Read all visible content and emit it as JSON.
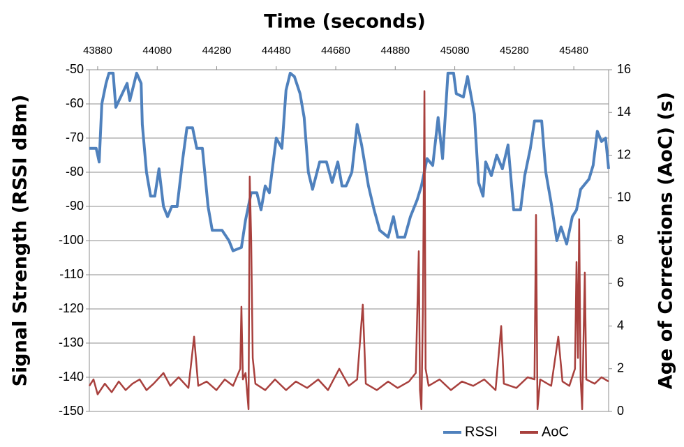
{
  "chart_data": {
    "type": "line",
    "x_label": "Time (seconds)",
    "y_label": "Signal Strength (RSSI dBm)",
    "y2_label": "Age of Corrections (AoC) (s)",
    "xlim": [
      43852,
      45597
    ],
    "xticks": [
      43880,
      44080,
      44280,
      44480,
      44680,
      44880,
      45080,
      45280,
      45480
    ],
    "ylim": [
      -150,
      -50
    ],
    "yticks": [
      -150,
      -140,
      -130,
      -120,
      -110,
      -100,
      -90,
      -80,
      -70,
      -60,
      -50
    ],
    "y2lim": [
      0,
      16
    ],
    "y2ticks": [
      0,
      2,
      4,
      6,
      8,
      10,
      12,
      14,
      16
    ],
    "grid": true,
    "legend": "bottom",
    "series": [
      {
        "name": "RSSI",
        "color": "#4f81bd",
        "x": [
          43852,
          43875,
          43885,
          43894,
          43908,
          43918,
          43932,
          43941,
          43979,
          43988,
          44011,
          44026,
          44030,
          44044,
          44058,
          44072,
          44086,
          44101,
          44115,
          44129,
          44147,
          44166,
          44180,
          44199,
          44213,
          44232,
          44251,
          44265,
          44298,
          44321,
          44335,
          44363,
          44377,
          44396,
          44415,
          44429,
          44443,
          44457,
          44480,
          44499,
          44513,
          44527,
          44541,
          44560,
          44574,
          44588,
          44602,
          44626,
          44649,
          44668,
          44687,
          44701,
          44715,
          44734,
          44752,
          44767,
          44790,
          44809,
          44828,
          44856,
          44874,
          44888,
          44912,
          44931,
          44954,
          44968,
          44987,
          45006,
          45024,
          45039,
          45057,
          45076,
          45085,
          45109,
          45123,
          45146,
          45160,
          45175,
          45184,
          45203,
          45221,
          45240,
          45259,
          45278,
          45301,
          45315,
          45334,
          45348,
          45372,
          45386,
          45404,
          45423,
          45437,
          45456,
          45475,
          45489,
          45503,
          45531,
          45545,
          45559,
          45573,
          45587,
          45597
        ],
        "values": [
          -73,
          -73,
          -77,
          -60,
          -54,
          -51,
          -51,
          -61,
          -54,
          -59,
          -51,
          -54,
          -66,
          -80,
          -87,
          -87,
          -79,
          -90,
          -93,
          -90,
          -90,
          -76,
          -67,
          -67,
          -73,
          -73,
          -90,
          -97,
          -97,
          -100,
          -103,
          -102,
          -94,
          -86,
          -86,
          -91,
          -84,
          -86,
          -70,
          -73,
          -56,
          -51,
          -52,
          -57,
          -64,
          -80,
          -85,
          -77,
          -77,
          -83,
          -77,
          -84,
          -84,
          -80,
          -66,
          -72,
          -84,
          -91,
          -97,
          -99,
          -93,
          -99,
          -99,
          -93,
          -88,
          -84,
          -76,
          -78,
          -64,
          -76,
          -51,
          -51,
          -57,
          -58,
          -52,
          -63,
          -83,
          -87,
          -77,
          -81,
          -75,
          -79,
          -72,
          -91,
          -91,
          -81,
          -73,
          -65,
          -65,
          -80,
          -89,
          -100,
          -96,
          -101,
          -93,
          -91,
          -85,
          -82,
          -78,
          -68,
          -71,
          -70,
          -79
        ]
      },
      {
        "name": "AoC",
        "color": "#a8403d",
        "axis": "y2",
        "x": [
          43852,
          43866,
          43880,
          43904,
          43927,
          43951,
          43974,
          43997,
          44021,
          44044,
          44068,
          44101,
          44124,
          44152,
          44185,
          44204,
          44218,
          44246,
          44279,
          44307,
          44335,
          44359,
          44363,
          44368,
          44377,
          44387,
          44391,
          44396,
          44401,
          44410,
          44443,
          44476,
          44513,
          44546,
          44584,
          44621,
          44654,
          44692,
          44724,
          44752,
          44771,
          44781,
          44818,
          44856,
          44888,
          44926,
          44949,
          44959,
          44963,
          44968,
          44973,
          44978,
          44982,
          44992,
          45029,
          45067,
          45104,
          45142,
          45179,
          45217,
          45236,
          45245,
          45287,
          45325,
          45348,
          45353,
          45358,
          45367,
          45404,
          45428,
          45442,
          45465,
          45484,
          45489,
          45494,
          45498,
          45503,
          45508,
          45517,
          45522,
          45550,
          45573,
          45597
        ],
        "values": [
          1.2,
          1.5,
          0.8,
          1.3,
          0.9,
          1.4,
          1.0,
          1.3,
          1.5,
          1.0,
          1.3,
          1.8,
          1.2,
          1.6,
          1.1,
          3.5,
          1.2,
          1.4,
          1.0,
          1.5,
          1.2,
          2.0,
          4.9,
          1.5,
          1.8,
          0.1,
          11,
          8,
          2.5,
          1.3,
          1.0,
          1.5,
          1.0,
          1.4,
          1.1,
          1.5,
          1.0,
          2.0,
          1.2,
          1.5,
          5.0,
          1.3,
          1.0,
          1.4,
          1.1,
          1.4,
          1.8,
          7.5,
          1.0,
          0.1,
          5,
          15,
          2,
          1.2,
          1.5,
          1.0,
          1.4,
          1.2,
          1.5,
          1.0,
          4.0,
          1.3,
          1.1,
          1.6,
          1.5,
          9.2,
          0.1,
          1.5,
          1.2,
          3.5,
          1.4,
          1.2,
          2.0,
          7.0,
          2.5,
          9.0,
          1.5,
          0.1,
          6.5,
          1.5,
          1.3,
          1.6,
          1.4
        ]
      }
    ]
  }
}
